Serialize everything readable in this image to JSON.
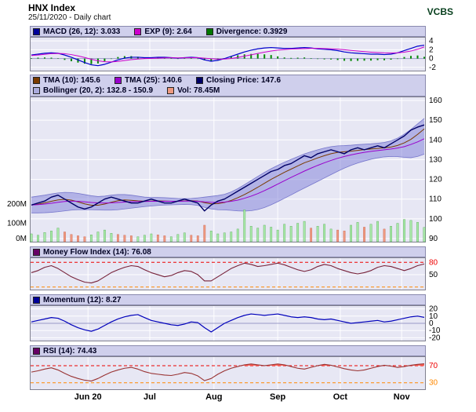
{
  "header": {
    "title": "HNX Index",
    "subtitle": "25/11/2020 - Daily chart",
    "brand": "VCBS"
  },
  "colors": {
    "panel_bg": "#e7e7f4",
    "legend_bg": "#cfcfec",
    "grid": "#ffffff",
    "border": "#80808f"
  },
  "x_axis": {
    "labels": [
      "Jun 20",
      "Jul",
      "Aug",
      "Sep",
      "Oct",
      "Nov"
    ],
    "fractions": [
      0.147,
      0.303,
      0.465,
      0.626,
      0.784,
      0.939
    ]
  },
  "chart_data": [
    {
      "id": "macd",
      "type": "line+histogram",
      "title": "MACD panel",
      "ylim": [
        -2.9,
        4.9
      ],
      "grid": [
        4,
        2,
        -2
      ],
      "reflines": [
        {
          "v": 0,
          "c": "#9a9ac8"
        }
      ],
      "yticks": [
        {
          "v": 4,
          "t": "4"
        },
        {
          "v": 2,
          "t": "2"
        },
        {
          "v": 0,
          "t": "0"
        },
        {
          "v": -2,
          "t": "-2"
        }
      ],
      "legend": [
        {
          "label": "MACD (26, 12): 3.033",
          "color": "#000099"
        },
        {
          "label": "EXP (9): 2.64",
          "color": "#cc00cc"
        },
        {
          "label": "Divergence: 0.3929",
          "color": "#007700"
        }
      ],
      "series": [
        {
          "name": "divergence",
          "type": "bars",
          "color": "#008800",
          "data": [
            0.1,
            0.2,
            0.25,
            0.2,
            0.05,
            -0.3,
            -0.6,
            -0.9,
            -1.15,
            -1.25,
            -1.1,
            -0.6,
            -0.05,
            0.35,
            0.55,
            0.55,
            0.4,
            0.2,
            0.15,
            0.2,
            0.15,
            0.03,
            -0.06,
            0.03,
            0.1,
            0,
            -0.4,
            -0.55,
            -0.28,
            0.1,
            0.48,
            0.75,
            0.95,
            1.05,
            1.05,
            0.95,
            0.8,
            0.5,
            0.25,
            0.15,
            0.2,
            0.25,
            0.1,
            -0.1,
            -0.17,
            -0.2,
            -0.32,
            -0.5,
            -0.55,
            -0.5,
            -0.47,
            -0.45,
            -0.35,
            -0.38,
            -0.25,
            0,
            0.35,
            0.6,
            0.7,
            0.39
          ]
        },
        {
          "name": "macd",
          "type": "line",
          "color": "#0000cc",
          "data": [
            0.8,
            1,
            1.2,
            1.3,
            1.2,
            0.8,
            0.3,
            -0.3,
            -0.9,
            -1.4,
            -1.6,
            -1.3,
            -0.8,
            -0.3,
            0.1,
            0.3,
            0.3,
            0.2,
            0.2,
            0.3,
            0.3,
            0.2,
            0.1,
            0.2,
            0.3,
            0.2,
            -0.3,
            -0.6,
            -0.4,
            0,
            0.5,
            1,
            1.5,
            1.9,
            2.2,
            2.4,
            2.5,
            2.4,
            2.3,
            2.3,
            2.4,
            2.5,
            2.4,
            2.2,
            2.1,
            2,
            1.8,
            1.5,
            1.3,
            1.2,
            1.1,
            1,
            1,
            0.9,
            1,
            1.3,
            1.8,
            2.3,
            2.8,
            3.033
          ]
        },
        {
          "name": "exp",
          "type": "line",
          "color": "#cc00cc",
          "data": [
            0.7,
            0.8,
            0.95,
            1.1,
            1.15,
            1.1,
            0.9,
            0.6,
            0.25,
            -0.15,
            -0.5,
            -0.7,
            -0.75,
            -0.65,
            -0.45,
            -0.25,
            -0.1,
            0,
            0.05,
            0.1,
            0.15,
            0.17,
            0.16,
            0.17,
            0.2,
            0.2,
            0.1,
            -0.05,
            -0.12,
            -0.1,
            0.02,
            0.25,
            0.55,
            0.85,
            1.15,
            1.45,
            1.7,
            1.9,
            2.05,
            2.15,
            2.2,
            2.25,
            2.3,
            2.3,
            2.27,
            2.2,
            2.12,
            2,
            1.85,
            1.7,
            1.57,
            1.45,
            1.35,
            1.28,
            1.25,
            1.3,
            1.45,
            1.7,
            2.1,
            2.64
          ]
        }
      ]
    },
    {
      "id": "price",
      "type": "line+band+volume",
      "title": "Price panel",
      "ylim": [
        88,
        162
      ],
      "grid": [
        90,
        100,
        110,
        120,
        130,
        140,
        150,
        160
      ],
      "yticks": [
        {
          "v": 160,
          "t": "160"
        },
        {
          "v": 150,
          "t": "150"
        },
        {
          "v": 140,
          "t": "140"
        },
        {
          "v": 130,
          "t": "130"
        },
        {
          "v": 120,
          "t": "120"
        },
        {
          "v": 110,
          "t": "110"
        },
        {
          "v": 100,
          "t": "100"
        },
        {
          "v": 90,
          "t": "90"
        }
      ],
      "vol_ylim": [
        0,
        760
      ],
      "left_ticks": [
        {
          "v": 200,
          "t": "200M"
        },
        {
          "v": 100,
          "t": "100M"
        },
        {
          "v": 0,
          "t": "0M"
        }
      ],
      "legend": [
        {
          "label": "TMA (10): 145.6",
          "color": "#7a3a00"
        },
        {
          "label": "TMA (25): 140.6",
          "color": "#9900cc"
        },
        {
          "label": "Closing Price: 147.6",
          "color": "#000066"
        },
        {
          "label": "Bollinger (20, 2): 132.8 - 150.9",
          "color": "#aaaadd"
        },
        {
          "label": "Vol: 78.45M",
          "color": "#ee9980"
        }
      ],
      "series": [
        {
          "name": "bollinger",
          "type": "band",
          "color": "#7777cc",
          "fill": "rgba(125,125,215,0.5)",
          "upper": [
            111,
            111.5,
            112,
            112.6,
            113.1,
            113.4,
            113.3,
            112.9,
            112.3,
            111.7,
            111.3,
            111.5,
            112,
            112.3,
            112.3,
            112,
            111.5,
            111,
            110.8,
            110.8,
            110.7,
            110.5,
            110.3,
            110.2,
            110.3,
            110.6,
            111,
            111.4,
            111.8,
            112.4,
            113.6,
            115.3,
            117.3,
            119.4,
            121.5,
            123.5,
            125.4,
            127.1,
            128.7,
            130.1,
            131.5,
            132.9,
            134,
            135,
            135.9,
            136.6,
            137,
            137.1,
            137.3,
            137.6,
            137.8,
            138,
            138.3,
            138.7,
            139.5,
            140.9,
            142.9,
            145.3,
            148.1,
            150.9
          ],
          "lower": [
            103,
            103,
            103.1,
            103.3,
            103.6,
            104,
            104.4,
            104.6,
            104.6,
            104.6,
            104.5,
            104.4,
            104.4,
            104.6,
            105,
            105.4,
            105.8,
            106.2,
            106.5,
            106.8,
            107,
            107.1,
            107.2,
            107.3,
            107.2,
            106.8,
            105.8,
            105,
            104.6,
            104.5,
            104.3,
            104,
            103.9,
            104.1,
            104.7,
            105.7,
            107.1,
            108.7,
            110.4,
            112.1,
            113.9,
            115.6,
            117.3,
            119,
            120.7,
            122.4,
            124.1,
            125.7,
            127.1,
            128.3,
            129.3,
            130.2,
            130.9,
            131.4,
            131.6,
            131.5,
            131.2,
            131,
            131.6,
            132.8
          ]
        },
        {
          "name": "volume",
          "type": "vbars",
          "upColor": "#a9e9a9",
          "downColor": "#ee9980",
          "strokeUp": "#55aa55",
          "strokeDown": "#cc6650",
          "data": [
            45,
            38,
            52,
            60,
            75,
            55,
            42,
            35,
            30,
            40,
            55,
            65,
            48,
            42,
            38,
            35,
            30,
            38,
            45,
            40,
            35,
            30,
            42,
            50,
            38,
            35,
            90,
            60,
            45,
            50,
            55,
            70,
            170,
            85,
            75,
            90,
            80,
            65,
            95,
            85,
            100,
            110,
            75,
            85,
            95,
            70,
            65,
            60,
            90,
            105,
            80,
            95,
            110,
            70,
            85,
            100,
            120,
            115,
            105,
            78.45
          ]
        },
        {
          "name": "tma10",
          "type": "line",
          "color": "#7a3a00",
          "data": [
            107,
            107.4,
            108.1,
            108.9,
            109.6,
            109.9,
            109.5,
            108.6,
            107.6,
            106.9,
            106.9,
            107.5,
            108.4,
            109.2,
            109.6,
            109.4,
            109.1,
            108.9,
            109,
            109.1,
            109,
            108.9,
            108.9,
            109.1,
            109.2,
            109,
            108.2,
            107.6,
            107.7,
            108.3,
            109.3,
            110.7,
            112.3,
            114.1,
            116,
            118,
            120,
            121.8,
            123.6,
            125.2,
            126.8,
            128.4,
            129.6,
            130.9,
            132,
            133,
            133.7,
            134,
            134.3,
            134.7,
            135.1,
            135.4,
            135.7,
            136,
            136.4,
            137.2,
            138.5,
            140.3,
            142.8,
            145.6
          ]
        },
        {
          "name": "tma25",
          "type": "line",
          "color": "#9900cc",
          "data": [
            107,
            107.2,
            107.5,
            107.9,
            108.4,
            108.8,
            109,
            108.9,
            108.6,
            108.3,
            108.1,
            108,
            108.1,
            108.3,
            108.5,
            108.7,
            108.8,
            108.8,
            108.9,
            108.9,
            108.9,
            108.9,
            108.9,
            109,
            109,
            108.9,
            108.6,
            108.4,
            108.3,
            108.5,
            108.9,
            109.5,
            110.4,
            111.5,
            112.8,
            114.3,
            115.9,
            117.6,
            119.3,
            121,
            122.6,
            124.2,
            125.7,
            127.1,
            128.4,
            129.6,
            130.7,
            131.6,
            132.4,
            133.1,
            133.7,
            134.2,
            134.6,
            135,
            135.4,
            135.9,
            136.6,
            137.7,
            139,
            140.6
          ]
        },
        {
          "name": "close",
          "type": "line",
          "color": "#000066",
          "data": [
            107,
            108,
            109,
            111,
            112,
            110,
            108,
            106,
            105,
            106,
            108,
            110,
            111,
            110,
            109,
            108,
            108,
            109,
            110,
            109,
            108,
            108,
            109,
            110,
            109,
            108,
            104,
            107,
            109,
            110,
            112,
            114,
            116,
            118,
            120,
            122,
            124,
            125,
            127,
            128,
            130,
            132,
            131,
            133,
            134,
            135,
            134,
            133,
            135,
            136,
            135,
            136,
            137,
            136,
            138,
            140,
            142,
            145,
            146.5,
            147.6
          ]
        }
      ]
    },
    {
      "id": "mfi",
      "type": "line",
      "title": "Money Flow Index panel",
      "ylim": [
        12,
        92
      ],
      "grid": [
        50
      ],
      "reflines": [
        {
          "v": 80,
          "c": "#ee0000",
          "d": "4,3"
        },
        {
          "v": 20,
          "c": "#ff8800",
          "d": "4,3"
        }
      ],
      "yticks": [
        {
          "v": 80,
          "t": "80",
          "c": "#ee0000"
        },
        {
          "v": 50,
          "t": "50"
        }
      ],
      "legend": [
        {
          "label": "Money Flow Index (14): 76.08",
          "color": "#660066"
        }
      ],
      "series": [
        {
          "name": "mfi",
          "type": "line",
          "color": "#77223a",
          "data": [
            55,
            60,
            68,
            72,
            65,
            55,
            45,
            38,
            32,
            30,
            35,
            45,
            55,
            62,
            68,
            72,
            70,
            62,
            55,
            50,
            45,
            48,
            55,
            60,
            58,
            50,
            35,
            35,
            45,
            55,
            65,
            72,
            78,
            75,
            70,
            72,
            75,
            78,
            74,
            68,
            62,
            58,
            62,
            70,
            75,
            72,
            65,
            60,
            55,
            52,
            55,
            60,
            68,
            72,
            70,
            65,
            60,
            65,
            72,
            76.08
          ]
        }
      ]
    },
    {
      "id": "momentum",
      "type": "line",
      "title": "Momentum panel",
      "ylim": [
        -25,
        25
      ],
      "grid": [
        20,
        10,
        -10,
        -20
      ],
      "reflines": [
        {
          "v": 0,
          "c": "#9a9ac8"
        }
      ],
      "yticks": [
        {
          "v": 20,
          "t": "20"
        },
        {
          "v": 10,
          "t": "10"
        },
        {
          "v": 0,
          "t": "0"
        },
        {
          "v": -10,
          "t": "-10"
        },
        {
          "v": -20,
          "t": "-20"
        }
      ],
      "legend": [
        {
          "label": "Momentum (12): 8.27",
          "color": "#000099"
        }
      ],
      "series": [
        {
          "name": "momentum",
          "type": "line",
          "color": "#0000bb",
          "data": [
            2,
            4,
            6,
            8,
            7,
            3,
            -2,
            -6,
            -9,
            -11,
            -8,
            -3,
            2,
            6,
            9,
            11,
            12,
            8,
            4,
            2,
            0,
            -2,
            -3,
            -1,
            2,
            1,
            -6,
            -12,
            -6,
            0,
            4,
            8,
            11,
            13,
            12,
            11,
            12,
            13,
            11,
            9,
            8,
            9,
            8,
            6,
            5,
            6,
            4,
            2,
            0,
            1,
            2,
            3,
            4,
            2,
            3,
            5,
            7,
            9,
            10,
            8.27
          ]
        }
      ]
    },
    {
      "id": "rsi",
      "type": "area",
      "title": "RSI panel",
      "ylim": [
        13,
        92
      ],
      "grid": [],
      "reflines": [
        {
          "v": 70,
          "c": "#ee0000",
          "d": "4,3"
        },
        {
          "v": 30,
          "c": "#ff8800",
          "d": "4,3"
        }
      ],
      "yticks": [
        {
          "v": 70,
          "t": "70",
          "c": "#ee0000"
        },
        {
          "v": 30,
          "t": "30",
          "c": "#ff8800"
        }
      ],
      "legend": [
        {
          "label": "RSI (14): 74.43",
          "color": "#660066"
        }
      ],
      "series": [
        {
          "name": "rsi",
          "type": "fillabove",
          "threshold": 70,
          "fill": "#ff5544",
          "color": "#993333",
          "data": [
            55,
            58,
            62,
            65,
            60,
            52,
            45,
            40,
            36,
            34,
            40,
            48,
            55,
            60,
            64,
            66,
            62,
            56,
            52,
            50,
            48,
            47,
            50,
            54,
            52,
            46,
            35,
            40,
            50,
            58,
            64,
            68,
            72,
            74,
            72,
            70,
            72,
            74,
            72,
            68,
            64,
            62,
            66,
            70,
            73,
            71,
            67,
            63,
            60,
            58,
            60,
            64,
            68,
            71,
            69,
            66,
            68,
            71,
            73,
            74.43
          ]
        }
      ]
    }
  ]
}
